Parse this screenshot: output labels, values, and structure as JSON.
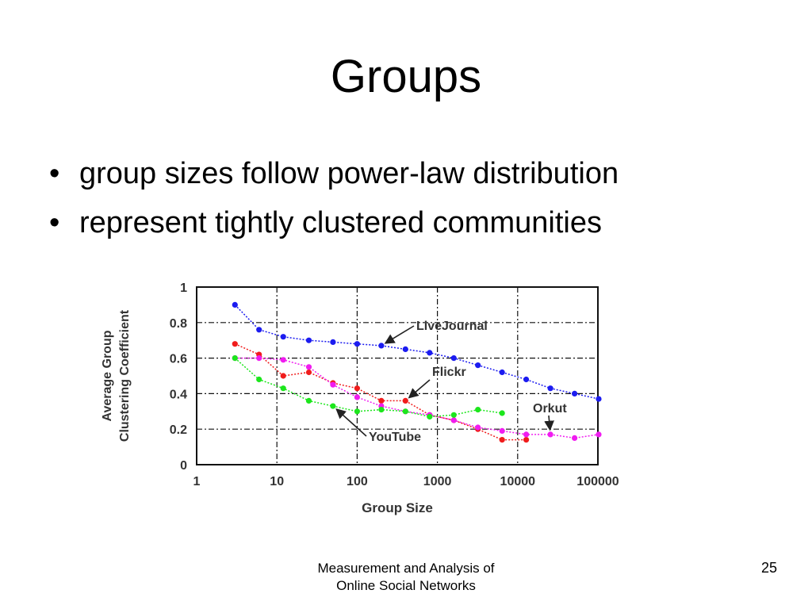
{
  "slide": {
    "title": "Groups",
    "bullets": [
      "group sizes follow power-law distribution",
      "represent tightly clustered communities"
    ],
    "footer": {
      "line1": "Measurement and Analysis of",
      "line2": "Online Social Networks"
    },
    "page_number": "25"
  },
  "chart_data": {
    "type": "line",
    "title": "",
    "xlabel": "Group Size",
    "ylabel": "Average Group Clustering Coefficient",
    "xscale": "log",
    "xlim": [
      1,
      100000
    ],
    "ylim": [
      0,
      1
    ],
    "xticks": [
      "1",
      "10",
      "100",
      "1000",
      "10000",
      "100000"
    ],
    "yticks": [
      "0",
      "0.2",
      "0.4",
      "0.6",
      "0.8",
      "1"
    ],
    "grid": true,
    "series": [
      {
        "name": "LiveJournal",
        "color": "#1c1cf0",
        "x": [
          3,
          6,
          12,
          25,
          50,
          100,
          200,
          400,
          800,
          1600,
          3200,
          6400,
          12800,
          25600,
          51200,
          102400
        ],
        "y": [
          0.9,
          0.76,
          0.72,
          0.7,
          0.69,
          0.68,
          0.67,
          0.65,
          0.63,
          0.6,
          0.56,
          0.52,
          0.48,
          0.43,
          0.4,
          0.37
        ]
      },
      {
        "name": "Flickr",
        "color": "#f01c1c",
        "x": [
          3,
          6,
          12,
          25,
          50,
          100,
          200,
          400,
          800,
          1600,
          3200,
          6400,
          12800
        ],
        "y": [
          0.68,
          0.62,
          0.5,
          0.52,
          0.46,
          0.43,
          0.36,
          0.36,
          0.28,
          0.25,
          0.2,
          0.14,
          0.14
        ]
      },
      {
        "name": "Orkut",
        "color": "#f01cf0",
        "x": [
          3,
          6,
          12,
          25,
          50,
          100,
          200,
          400,
          800,
          1600,
          3200,
          6400,
          12800,
          25600,
          51200,
          102400
        ],
        "y": [
          0.6,
          0.6,
          0.59,
          0.55,
          0.45,
          0.38,
          0.33,
          0.3,
          0.28,
          0.25,
          0.21,
          0.19,
          0.17,
          0.17,
          0.15,
          0.17
        ]
      },
      {
        "name": "YouTube",
        "color": "#1ce61c",
        "x": [
          3,
          6,
          12,
          25,
          50,
          100,
          200,
          400,
          800,
          1600,
          3200,
          6400
        ],
        "y": [
          0.6,
          0.48,
          0.43,
          0.36,
          0.33,
          0.3,
          0.31,
          0.3,
          0.27,
          0.28,
          0.31,
          0.29
        ]
      }
    ],
    "annotations": [
      {
        "label": "LiveJournal",
        "points_to_series": "LiveJournal"
      },
      {
        "label": "Flickr",
        "points_to_series": "Flickr"
      },
      {
        "label": "Orkut",
        "points_to_series": "Orkut"
      },
      {
        "label": "YouTube",
        "points_to_series": "YouTube"
      }
    ]
  }
}
